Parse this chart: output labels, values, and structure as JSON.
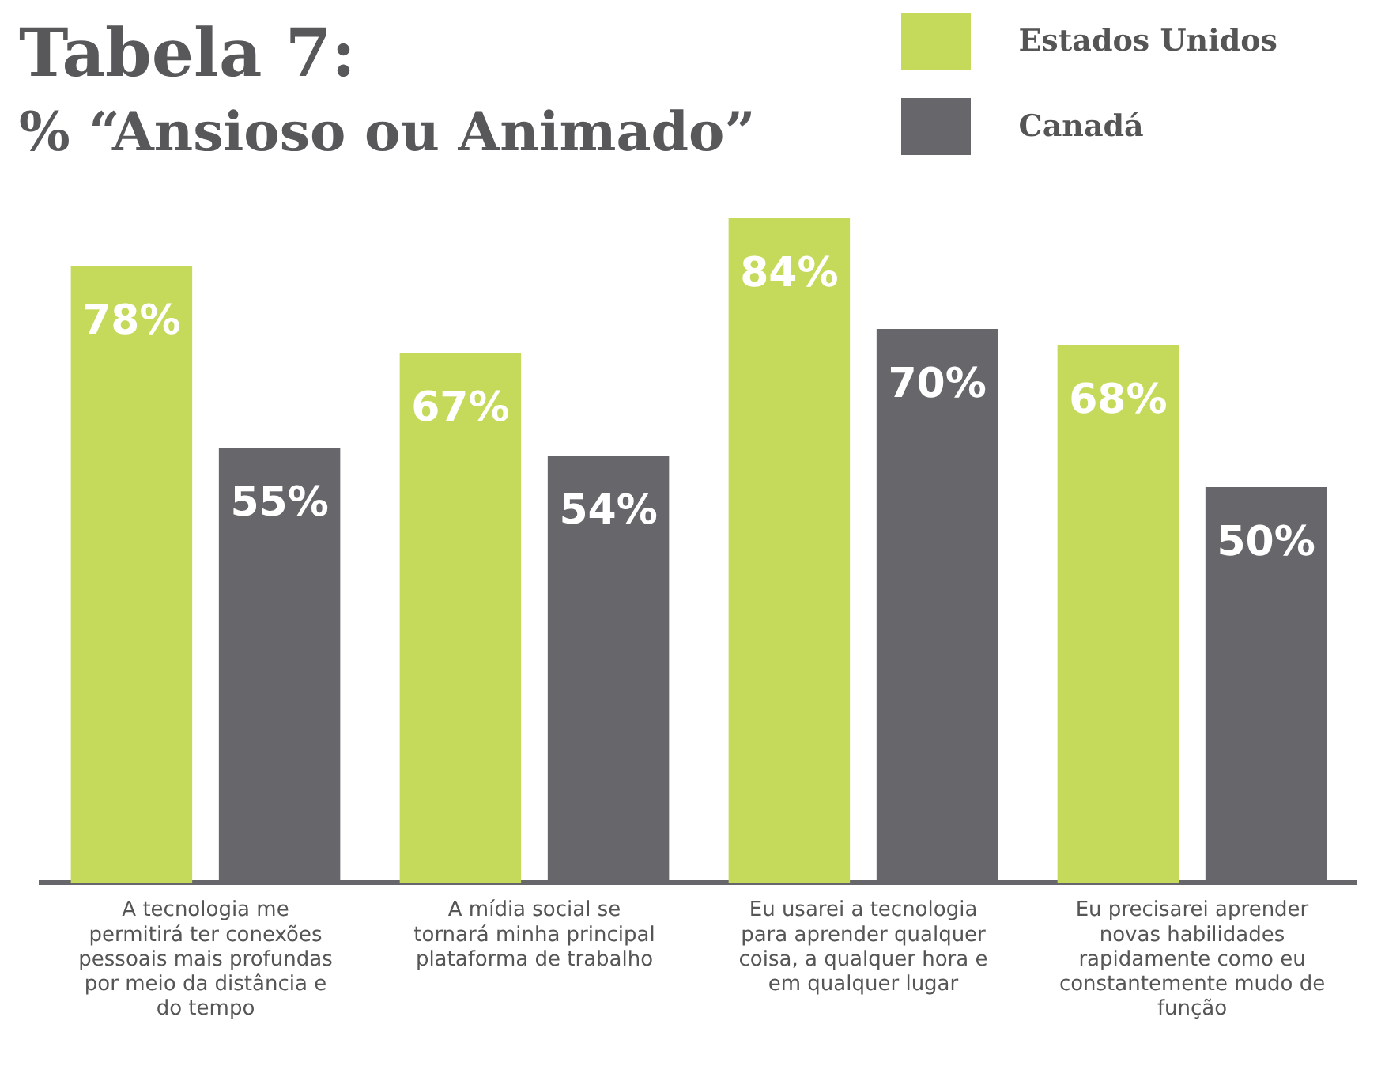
{
  "chart_data": {
    "type": "bar",
    "title": "Tabela 7:",
    "subtitle": "% “Ansioso ou Animado”",
    "categories": [
      "A tecnologia me permitirá ter conexões pessoais mais profundas por meio da distância e do tempo",
      "A mídia social se tornará minha principal plataforma de trabalho",
      "Eu usarei a tecnologia para aprender qualquer coisa, a qualquer hora e em qualquer lugar",
      "Eu precisarei aprender novas habilidades rapidamente como eu constantemente mudo de função"
    ],
    "series": [
      {
        "name": "Estados Unidos",
        "color": "#c5d95a",
        "values": [
          78,
          67,
          84,
          68
        ],
        "value_labels": [
          "78%",
          "67%",
          "84%",
          "68%"
        ]
      },
      {
        "name": "Canadá",
        "color": "#67666b",
        "values": [
          55,
          54,
          70,
          50
        ],
        "value_labels": [
          "55%",
          "54%",
          "70%",
          "50%"
        ]
      }
    ],
    "grid": false,
    "legend": "top right"
  }
}
